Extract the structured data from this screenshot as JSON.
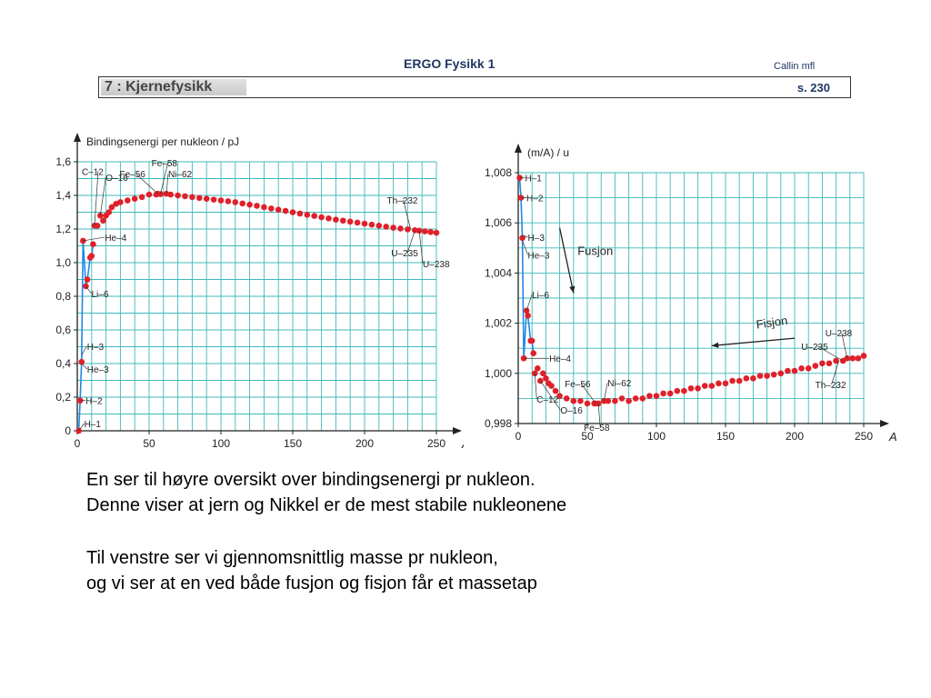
{
  "header": {
    "title": "ERGO Fysikk 1",
    "author": "Callin mfl",
    "chapter": "7 : Kjernefysikk",
    "page": "s. 230"
  },
  "colors": {
    "grid": "#3fb8b8",
    "points": "#e0202a",
    "line": "#1e88e5",
    "header_text": "#1f3864"
  },
  "chart_data": [
    {
      "type": "scatter",
      "ylabel": "Bindingsenergi per nukleon / pJ",
      "xlabel": "A",
      "xlim": [
        0,
        250
      ],
      "ylim": [
        0,
        1.6
      ],
      "x_ticks": [
        0,
        50,
        100,
        150,
        200,
        250
      ],
      "y_ticks": [
        0,
        0.2,
        0.4,
        0.6,
        0.8,
        1.0,
        1.2,
        1.4,
        1.6
      ],
      "y_tick_labels": [
        "0",
        "0,2",
        "0,4",
        "0,6",
        "0,8",
        "1,0",
        "1,2",
        "1,4",
        "1,6"
      ],
      "grid": true,
      "early_line_x": [
        1,
        2,
        3,
        4,
        6,
        7,
        9,
        10,
        11
      ],
      "early_line_y": [
        0,
        0.18,
        0.41,
        1.13,
        0.86,
        0.9,
        1.03,
        1.04,
        1.11
      ],
      "x": [
        1,
        2,
        3,
        4,
        6,
        7,
        9,
        10,
        11,
        12,
        14,
        16,
        18,
        20,
        22,
        24,
        27,
        30,
        35,
        40,
        45,
        50,
        55,
        56,
        58,
        62,
        65,
        70,
        75,
        80,
        85,
        90,
        95,
        100,
        105,
        110,
        115,
        120,
        125,
        130,
        135,
        140,
        145,
        150,
        155,
        160,
        165,
        170,
        175,
        180,
        185,
        190,
        195,
        200,
        205,
        210,
        215,
        220,
        225,
        230,
        235,
        238,
        242,
        246,
        250
      ],
      "y": [
        0,
        0.18,
        0.41,
        1.13,
        0.86,
        0.9,
        1.03,
        1.04,
        1.11,
        1.22,
        1.22,
        1.28,
        1.25,
        1.28,
        1.3,
        1.33,
        1.35,
        1.36,
        1.37,
        1.38,
        1.39,
        1.405,
        1.405,
        1.41,
        1.408,
        1.41,
        1.405,
        1.4,
        1.395,
        1.39,
        1.385,
        1.38,
        1.375,
        1.37,
        1.365,
        1.36,
        1.352,
        1.345,
        1.338,
        1.33,
        1.322,
        1.315,
        1.308,
        1.3,
        1.292,
        1.285,
        1.278,
        1.27,
        1.263,
        1.256,
        1.25,
        1.244,
        1.238,
        1.232,
        1.226,
        1.22,
        1.214,
        1.208,
        1.203,
        1.198,
        1.193,
        1.19,
        1.186,
        1.182,
        1.178
      ],
      "annotations": [
        {
          "label": "H–1",
          "x": 1,
          "y": 0
        },
        {
          "label": "H–2",
          "x": 2,
          "y": 0.18
        },
        {
          "label": "H–3",
          "x": 3,
          "y": 0.45
        },
        {
          "label": "He–3",
          "x": 3,
          "y": 0.4
        },
        {
          "label": "Li–6",
          "x": 6,
          "y": 0.86
        },
        {
          "label": "He–4",
          "x": 4,
          "y": 1.13
        },
        {
          "label": "C–12",
          "x": 12,
          "y": 1.22
        },
        {
          "label": "O–16",
          "x": 16,
          "y": 1.28
        },
        {
          "label": "Fe–56",
          "x": 56,
          "y": 1.41
        },
        {
          "label": "Fe–58",
          "x": 58,
          "y": 1.41
        },
        {
          "label": "Ni–62",
          "x": 62,
          "y": 1.41
        },
        {
          "label": "Th–232",
          "x": 232,
          "y": 1.2
        },
        {
          "label": "U–235",
          "x": 235,
          "y": 1.19
        },
        {
          "label": "U–238",
          "x": 238,
          "y": 1.19
        }
      ]
    },
    {
      "type": "scatter",
      "ylabel": "(m/A) / u",
      "xlabel": "A",
      "xlim": [
        0,
        250
      ],
      "ylim": [
        0.998,
        1.008
      ],
      "x_ticks": [
        0,
        50,
        100,
        150,
        200,
        250
      ],
      "y_ticks": [
        0.998,
        1.0,
        1.002,
        1.004,
        1.006,
        1.008
      ],
      "y_tick_labels": [
        "0,998",
        "1,000",
        "1,002",
        "1,004",
        "1,006",
        "1,008"
      ],
      "grid": true,
      "early_line_x": [
        1,
        2,
        3,
        4,
        6,
        7,
        9,
        10,
        11
      ],
      "early_line_y": [
        1.0078,
        1.007,
        1.0054,
        1.0006,
        1.0025,
        1.0023,
        1.0013,
        1.0013,
        1.0008
      ],
      "x": [
        1,
        2,
        3,
        4,
        6,
        7,
        9,
        10,
        11,
        12,
        14,
        16,
        18,
        20,
        22,
        24,
        27,
        30,
        35,
        40,
        45,
        50,
        55,
        56,
        58,
        62,
        65,
        70,
        75,
        80,
        85,
        90,
        95,
        100,
        105,
        110,
        115,
        120,
        125,
        130,
        135,
        140,
        145,
        150,
        155,
        160,
        165,
        170,
        175,
        180,
        185,
        190,
        195,
        200,
        205,
        210,
        215,
        220,
        225,
        230,
        235,
        238,
        242,
        246,
        250
      ],
      "y": [
        1.0078,
        1.007,
        1.0054,
        1.0006,
        1.0025,
        1.0023,
        1.0013,
        1.0013,
        1.0008,
        1.0,
        1.0002,
        0.9997,
        1.0,
        0.9998,
        0.9996,
        0.9995,
        0.9993,
        0.9991,
        0.999,
        0.9989,
        0.9989,
        0.9988,
        0.9988,
        0.9988,
        0.9988,
        0.9989,
        0.9989,
        0.9989,
        0.999,
        0.9989,
        0.999,
        0.999,
        0.9991,
        0.9991,
        0.9992,
        0.9992,
        0.9993,
        0.9993,
        0.9994,
        0.9994,
        0.9995,
        0.9995,
        0.9996,
        0.9996,
        0.9997,
        0.9997,
        0.9998,
        0.9998,
        0.9999,
        0.9999,
        0.99995,
        1.0,
        1.0001,
        1.0001,
        1.0002,
        1.0002,
        1.0003,
        1.0004,
        1.0004,
        1.0005,
        1.0005,
        1.0006,
        1.0006,
        1.0006,
        1.0007
      ],
      "annotations": [
        {
          "label": "H–1",
          "x": 1,
          "y": 1.0078
        },
        {
          "label": "H–2",
          "x": 2,
          "y": 1.007
        },
        {
          "label": "H–3",
          "x": 3,
          "y": 1.0055
        },
        {
          "label": "He–3",
          "x": 3,
          "y": 1.0053
        },
        {
          "label": "Li–6",
          "x": 6,
          "y": 1.0025
        },
        {
          "label": "He–4",
          "x": 4,
          "y": 1.0006
        },
        {
          "label": "C–12",
          "x": 12,
          "y": 1.0
        },
        {
          "label": "O–16",
          "x": 16,
          "y": 0.9997
        },
        {
          "label": "Fe–56",
          "x": 56,
          "y": 0.9988
        },
        {
          "label": "Fe–58",
          "x": 58,
          "y": 0.9988
        },
        {
          "label": "Ni–62",
          "x": 62,
          "y": 0.9989
        },
        {
          "label": "U–238",
          "x": 238,
          "y": 1.0006
        },
        {
          "label": "U–235",
          "x": 235,
          "y": 1.0005
        },
        {
          "label": "Th–232",
          "x": 232,
          "y": 1.0005
        }
      ],
      "arrows": [
        {
          "label": "Fusjon",
          "from": [
            30,
            1.0058
          ],
          "to": [
            40,
            1.0032
          ]
        },
        {
          "label": "Fisjon",
          "from": [
            200,
            1.0014
          ],
          "to": [
            140,
            1.0011
          ]
        }
      ]
    }
  ],
  "caption": {
    "line1": "En ser til høyre oversikt over bindingsenergi pr nukleon.",
    "line2": "Denne viser at jern og Nikkel er de mest stabile nukleonene",
    "line3": "Til venstre ser vi gjennomsnittlig masse pr nukleon,",
    "line4": "og vi ser at en ved både fusjon og fisjon får et massetap"
  }
}
